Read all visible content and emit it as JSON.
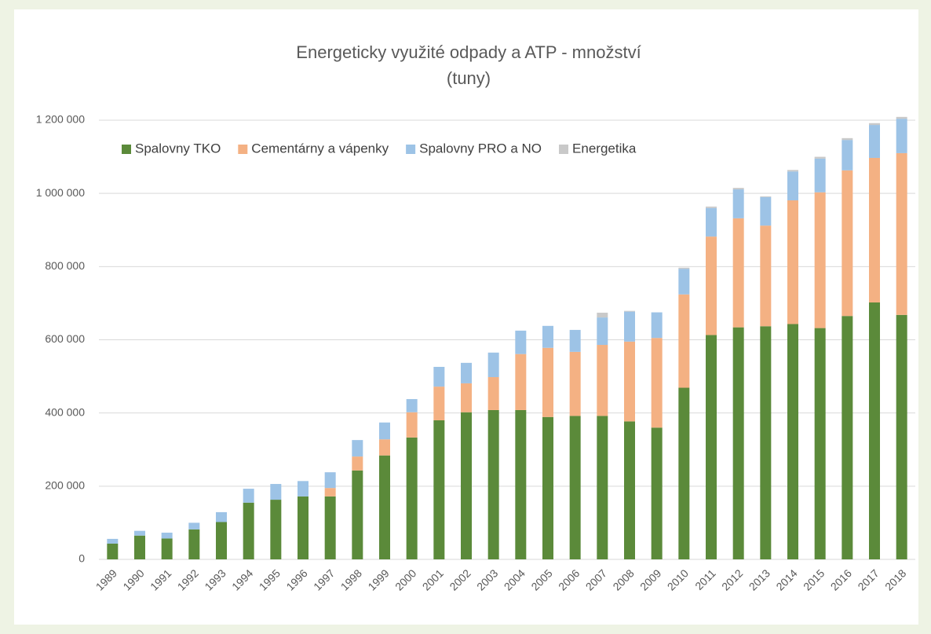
{
  "chart_data": {
    "type": "stacked_bar",
    "title": "Energeticky využité odpady a ATP - množství",
    "subtitle": "(tuny)",
    "categories": [
      "1989",
      "1990",
      "1991",
      "1992",
      "1993",
      "1994",
      "1995",
      "1996",
      "1997",
      "1998",
      "1999",
      "2000",
      "2001",
      "2002",
      "2003",
      "2004",
      "2005",
      "2006",
      "2007",
      "2008",
      "2009",
      "2010",
      "2011",
      "2012",
      "2013",
      "2014",
      "2015",
      "2016",
      "2017",
      "2018"
    ],
    "series": [
      {
        "name": "Spalovny TKO",
        "color": "#5b8a3a",
        "values": [
          43000,
          65000,
          57000,
          82000,
          102000,
          155000,
          163000,
          172000,
          172000,
          243000,
          284000,
          333000,
          380000,
          402000,
          408000,
          408000,
          389000,
          392000,
          392000,
          377000,
          360000,
          469000,
          613000,
          634000,
          637000,
          643000,
          632000,
          665000,
          702000,
          668000
        ]
      },
      {
        "name": "Cementárny a vápenky",
        "color": "#f4b183",
        "values": [
          0,
          0,
          0,
          0,
          0,
          0,
          0,
          0,
          23000,
          38000,
          44000,
          69000,
          92000,
          79000,
          90000,
          153000,
          189000,
          175000,
          194000,
          218000,
          245000,
          255000,
          269000,
          298000,
          275000,
          338000,
          371000,
          398000,
          395000,
          442000
        ]
      },
      {
        "name": "Spalovny PRO a NO",
        "color": "#9dc3e6",
        "values": [
          13000,
          13000,
          16000,
          18000,
          27000,
          38000,
          43000,
          42000,
          43000,
          45000,
          46000,
          36000,
          54000,
          56000,
          67000,
          64000,
          60000,
          60000,
          75000,
          82000,
          70000,
          70000,
          78000,
          79000,
          78000,
          79000,
          92000,
          83000,
          90000,
          94000
        ]
      },
      {
        "name": "Energetika",
        "color": "#c9c9c9",
        "values": [
          0,
          0,
          0,
          0,
          0,
          0,
          0,
          0,
          0,
          0,
          0,
          0,
          0,
          0,
          0,
          0,
          0,
          0,
          13000,
          2000,
          0,
          3000,
          4000,
          4000,
          2000,
          4000,
          5000,
          5000,
          5000,
          5000
        ]
      }
    ],
    "ylim": [
      0,
      1200000
    ],
    "yticks": [
      0,
      {
        "value": 200000,
        "label": "200 000"
      },
      {
        "value": 400000,
        "label": "400 000"
      },
      {
        "value": 600000,
        "label": "600 000"
      },
      {
        "value": 800000,
        "label": "800 000"
      },
      {
        "value": 1000000,
        "label": "1 000 000"
      },
      {
        "value": 1200000,
        "label": "1 200 000"
      }
    ],
    "grid": true,
    "legend": "top-left"
  }
}
